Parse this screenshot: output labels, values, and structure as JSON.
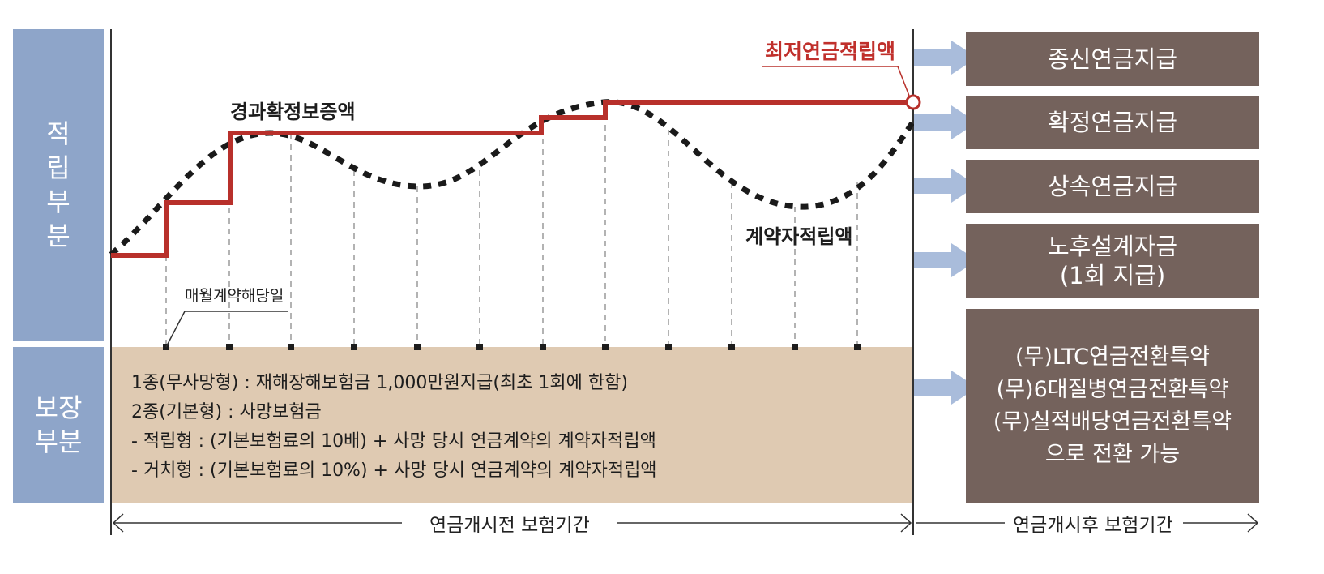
{
  "left_labels": {
    "accumulation": [
      "적",
      "립",
      "부",
      "분"
    ],
    "guarantee": [
      "보장",
      "부분"
    ]
  },
  "chart_labels": {
    "min_annuity_reserve": "최저연금적립액",
    "interim_guarantee": "경과확정보증액",
    "contractor_reserve": "계약자적립액",
    "monthly_anniversary": "매월계약해당일"
  },
  "guarantee_lines": [
    "1종(무사망형) : 재해장해보험금 1,000만원지급(최초 1회에 한함)",
    "2종(기본형) : 사망보험금",
    "- 적립형 : (기본보험료의 10배) + 사망 당시 연금계약의 계약자적립액",
    "- 거치형 : (기본보험료의 10%) + 사망 당시 연금계약의 계약자적립액"
  ],
  "payout_options": [
    {
      "lines": [
        "종신연금지급"
      ]
    },
    {
      "lines": [
        "확정연금지급"
      ]
    },
    {
      "lines": [
        "상속연금지급"
      ]
    },
    {
      "lines": [
        "노후설계자금",
        "(1회 지급)"
      ]
    },
    {
      "lines": [
        "(무)LTC연금전환특약",
        "(무)6대질병연금전환특약",
        "(무)실적배당연금전환특약",
        "으로 전환 가능"
      ]
    }
  ],
  "periods": {
    "before": "연금개시전 보험기간",
    "after": "연금개시후 보험기간"
  },
  "colors": {
    "side_box": "#8ea5c9",
    "guarantee_area": "#dfcab2",
    "payout_box": "#74625c",
    "arrow": "#a9bcdb",
    "guarantee_line": "#b8302b"
  }
}
